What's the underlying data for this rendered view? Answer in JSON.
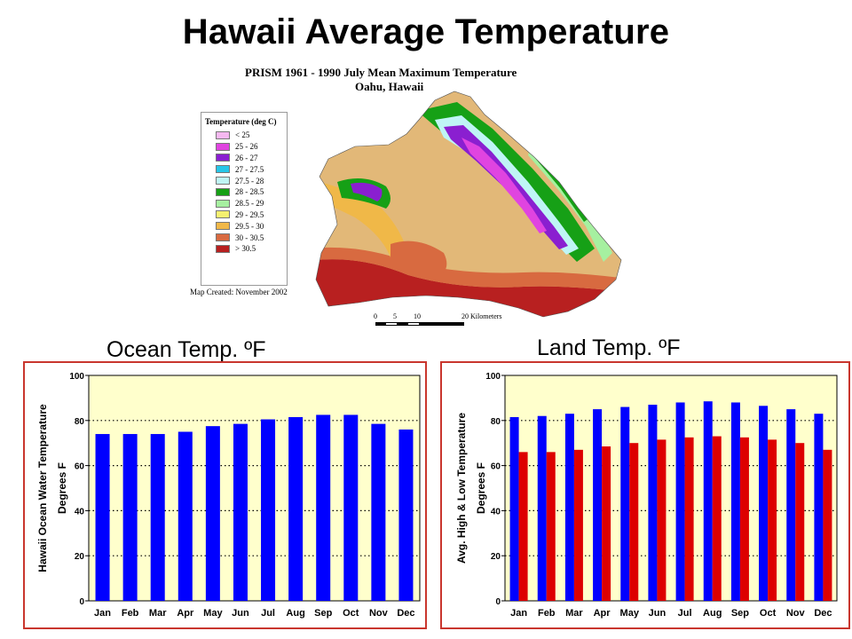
{
  "slide": {
    "title": "Hawaii Average Temperature"
  },
  "map": {
    "header_line1": "PRISM 1961 - 1990  July Mean Maximum Temperature",
    "header_line2": "Oahu, Hawaii",
    "legend_title": "Temperature (deg C)",
    "legend": [
      {
        "label": "< 25",
        "color": "#f5b8f0"
      },
      {
        "label": "25 - 26",
        "color": "#e044e0"
      },
      {
        "label": "26 - 27",
        "color": "#8a1fd0"
      },
      {
        "label": "27 - 27.5",
        "color": "#27c6e8"
      },
      {
        "label": "27.5 - 28",
        "color": "#bff5f5"
      },
      {
        "label": "28 - 28.5",
        "color": "#16a016"
      },
      {
        "label": "28.5 - 29",
        "color": "#a6f0a0"
      },
      {
        "label": "29 - 29.5",
        "color": "#f5f070"
      },
      {
        "label": "29.5 - 30",
        "color": "#f0b848"
      },
      {
        "label": "30 - 30.5",
        "color": "#d86a40"
      },
      {
        "label": "> 30.5",
        "color": "#b82020"
      }
    ],
    "created": "Map Created: November 2002",
    "scale_ticks": [
      "0",
      "5",
      "10",
      "20 Kilometers"
    ]
  },
  "panels": {
    "ocean_title": "Ocean Temp. ºF",
    "land_title": "Land Temp. ºF"
  },
  "chart_data": [
    {
      "type": "bar",
      "categories": [
        "Jan",
        "Feb",
        "Mar",
        "Apr",
        "May",
        "Jun",
        "Jul",
        "Aug",
        "Sep",
        "Oct",
        "Nov",
        "Dec"
      ],
      "series": [
        {
          "values": [
            74,
            74,
            74,
            75,
            77.5,
            78.5,
            80.5,
            81.5,
            82.5,
            82.5,
            78.5,
            76
          ],
          "color": "#0000ff"
        }
      ],
      "ylabel": "Hawaii Ocean Water Temperature Degrees F",
      "ylabel_lines": [
        "Hawaii Ocean Water Temperature",
        "Degrees F"
      ],
      "ylim": [
        0,
        100
      ],
      "yticks": [
        "0",
        "20",
        "40",
        "60",
        "80",
        "100"
      ],
      "grid": true,
      "plot_bg": "#ffffcc"
    },
    {
      "type": "bar",
      "categories": [
        "Jan",
        "Feb",
        "Mar",
        "Apr",
        "May",
        "Jun",
        "Jul",
        "Aug",
        "Sep",
        "Oct",
        "Nov",
        "Dec"
      ],
      "series": [
        {
          "values": [
            81.5,
            82,
            83,
            85,
            86,
            87,
            88,
            88.5,
            88,
            86.5,
            85,
            83
          ],
          "color": "#0000ff"
        },
        {
          "values": [
            66,
            66,
            67,
            68.5,
            70,
            71.5,
            72.5,
            73,
            72.5,
            71.5,
            70,
            67
          ],
          "color": "#dd0000"
        }
      ],
      "ylabel": "Avg. High & Low Temperature Degrees F",
      "ylabel_lines": [
        "Avg. High & Low Temperature",
        "Degrees F"
      ],
      "ylim": [
        0,
        100
      ],
      "yticks": [
        "0",
        "20",
        "40",
        "60",
        "80",
        "100"
      ],
      "grid": true,
      "plot_bg": "#ffffcc"
    }
  ]
}
